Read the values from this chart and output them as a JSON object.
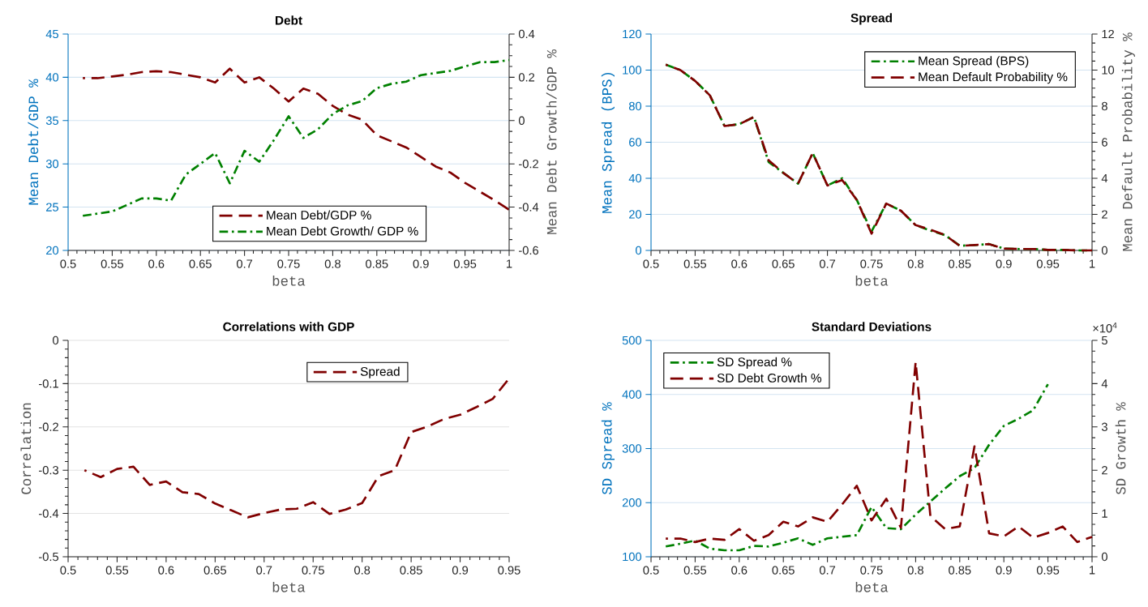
{
  "chart_data": [
    {
      "type": "line",
      "title": "Debt",
      "xlabel": "beta",
      "ylabel": "Mean Debt/GDP %",
      "y2label": "Mean Debt Growth/GDP %",
      "x": [
        0.5167,
        0.5333,
        0.55,
        0.5667,
        0.5833,
        0.6,
        0.6167,
        0.6333,
        0.65,
        0.6667,
        0.6833,
        0.7,
        0.7167,
        0.7333,
        0.75,
        0.7667,
        0.7833,
        0.8,
        0.8167,
        0.8333,
        0.85,
        0.8667,
        0.8833,
        0.9,
        0.9167,
        0.9333,
        0.95,
        0.9667,
        0.9833,
        1
      ],
      "xlim": [
        0.5,
        1
      ],
      "xticks": [
        0.5,
        0.55,
        0.6,
        0.65,
        0.7,
        0.75,
        0.8,
        0.85,
        0.9,
        0.95,
        1
      ],
      "ylim": [
        20,
        45
      ],
      "yticks": [
        20,
        25,
        30,
        35,
        40,
        45
      ],
      "y2lim": [
        -0.6,
        0.4
      ],
      "y2ticks": [
        -0.6,
        -0.4,
        -0.2,
        0,
        0.2,
        0.4
      ],
      "grid": "y",
      "legend": "bottom",
      "series": [
        {
          "name": "Mean Debt/GDP %",
          "color": "#800000",
          "line_style": "dashed",
          "values": [
            39.9,
            39.9,
            40.1,
            40.3,
            40.6,
            40.7,
            40.6,
            40.3,
            40,
            39.4,
            41,
            39.4,
            40,
            38.7,
            37.2,
            38.7,
            38.1,
            36.7,
            35.7,
            35.1,
            33.3,
            32.6,
            31.9,
            30.8,
            29.7,
            29,
            27.8,
            26.8,
            25.8,
            24.7
          ]
        },
        {
          "name": "Mean Debt Growth/ GDP %",
          "color": "#008000",
          "line_style": "dashdot",
          "axis": "y2",
          "values": [
            -0.44,
            -0.43,
            -0.42,
            -0.39,
            -0.36,
            -0.36,
            -0.37,
            -0.25,
            -0.2,
            -0.15,
            -0.29,
            -0.14,
            -0.19,
            -0.09,
            0.02,
            -0.08,
            -0.04,
            0.03,
            0.07,
            0.09,
            0.15,
            0.17,
            0.18,
            0.21,
            0.22,
            0.23,
            0.25,
            0.27,
            0.27,
            0.28
          ]
        }
      ]
    },
    {
      "type": "line",
      "title": "Spread",
      "xlabel": "beta",
      "ylabel": "Mean Spread (BPS)",
      "y2label": "Mean Default Probability %",
      "x": [
        0.5167,
        0.5333,
        0.55,
        0.5667,
        0.5833,
        0.6,
        0.6167,
        0.6333,
        0.65,
        0.6667,
        0.6833,
        0.7,
        0.7167,
        0.7333,
        0.75,
        0.7667,
        0.7833,
        0.8,
        0.8167,
        0.8333,
        0.85,
        0.8667,
        0.8833,
        0.9,
        0.9167,
        0.9333,
        0.95,
        0.9667,
        0.9833,
        1
      ],
      "xlim": [
        0.5,
        1
      ],
      "xticks": [
        0.5,
        0.55,
        0.6,
        0.65,
        0.7,
        0.75,
        0.8,
        0.85,
        0.9,
        0.95,
        1
      ],
      "ylim": [
        0,
        120
      ],
      "yticks": [
        0,
        20,
        40,
        60,
        80,
        100,
        120
      ],
      "y2lim": [
        0,
        12
      ],
      "y2ticks": [
        0,
        2,
        4,
        6,
        8,
        10,
        12
      ],
      "grid": "y",
      "legend": "top right",
      "series": [
        {
          "name": "Mean Spread (BPS)",
          "color": "#008000",
          "line_style": "dashdot",
          "values": [
            103,
            100,
            94,
            86,
            69,
            70,
            74,
            49,
            43,
            37,
            54,
            36,
            40,
            28,
            10.5,
            26,
            22,
            14,
            11,
            8.5,
            2.6,
            2.9,
            3.5,
            1,
            0.8,
            0.8,
            0.3,
            0.3,
            0,
            0
          ]
        },
        {
          "name": "Mean Default Probability %",
          "color": "#800000",
          "line_style": "dashed",
          "axis": "y2",
          "values": [
            10.3,
            10,
            9.4,
            8.6,
            6.9,
            7,
            7.4,
            5,
            4.3,
            3.7,
            5.4,
            3.6,
            3.9,
            2.8,
            0.93,
            2.6,
            2.2,
            1.4,
            1.15,
            0.85,
            0.25,
            0.3,
            0.35,
            0.1,
            0.08,
            0.08,
            0.03,
            0.03,
            0,
            0
          ]
        }
      ]
    },
    {
      "type": "line",
      "title": "Correlations with GDP",
      "xlabel": "beta",
      "ylabel": "Correlation",
      "x": [
        0.5167,
        0.5333,
        0.55,
        0.5667,
        0.5833,
        0.6,
        0.6167,
        0.6333,
        0.65,
        0.6667,
        0.6833,
        0.7,
        0.7167,
        0.7333,
        0.75,
        0.7667,
        0.7833,
        0.8,
        0.8167,
        0.8333,
        0.85,
        0.8667,
        0.8833,
        0.9,
        0.9167,
        0.9333,
        0.95
      ],
      "xlim": [
        0.5,
        0.95
      ],
      "xticks": [
        0.5,
        0.55,
        0.6,
        0.65,
        0.7,
        0.75,
        0.8,
        0.85,
        0.9,
        0.95
      ],
      "ylim": [
        -0.5,
        0
      ],
      "yticks": [
        -0.5,
        -0.4,
        -0.3,
        -0.2,
        -0.1,
        0
      ],
      "grid": "y",
      "legend": "top",
      "series": [
        {
          "name": "Spread",
          "color": "#800000",
          "line_style": "dashed",
          "values": [
            -0.3,
            -0.316,
            -0.297,
            -0.292,
            -0.334,
            -0.326,
            -0.351,
            -0.355,
            -0.377,
            -0.393,
            -0.409,
            -0.399,
            -0.391,
            -0.389,
            -0.374,
            -0.401,
            -0.391,
            -0.376,
            -0.314,
            -0.3,
            -0.212,
            -0.199,
            -0.182,
            -0.172,
            -0.154,
            -0.135,
            -0.088
          ]
        }
      ]
    },
    {
      "type": "line",
      "title": "Standard Deviations",
      "xlabel": "beta",
      "ylabel": "SD Spread %",
      "y2label": "SD Growth %",
      "annotations": [
        "×10$^{4}$"
      ],
      "x": [
        0.5167,
        0.5333,
        0.55,
        0.5667,
        0.5833,
        0.6,
        0.6167,
        0.6333,
        0.65,
        0.6667,
        0.6833,
        0.7,
        0.7167,
        0.7333,
        0.75,
        0.7667,
        0.7833,
        0.8,
        0.8167,
        0.8333,
        0.85,
        0.8667,
        0.8833,
        0.9,
        0.9167,
        0.9333,
        0.95,
        0.9667,
        0.9833,
        1
      ],
      "xlim": [
        0.5,
        1
      ],
      "xticks": [
        0.5,
        0.55,
        0.6,
        0.65,
        0.7,
        0.75,
        0.8,
        0.85,
        0.9,
        0.95,
        1
      ],
      "ylim": [
        100,
        500
      ],
      "yticks": [
        100,
        200,
        300,
        400,
        500
      ],
      "y2lim": [
        0,
        5
      ],
      "y2ticks": [
        0,
        1,
        2,
        3,
        4,
        5
      ],
      "grid": "y",
      "legend": "top left",
      "series": [
        {
          "name": "SD Spread %",
          "color": "#008000",
          "line_style": "dashdot",
          "values": [
            119,
            124,
            130,
            115,
            112,
            112,
            120,
            119,
            126,
            134,
            122,
            134,
            137,
            140,
            192,
            153,
            151,
            178,
            202,
            226,
            249,
            264,
            307,
            342,
            355,
            371,
            419,
            null,
            null,
            null
          ]
        },
        {
          "name": "SD Debt Growth %",
          "color": "#800000",
          "line_style": "dashed",
          "axis": "y2",
          "values": [
            0.42,
            0.42,
            0.34,
            0.42,
            0.39,
            0.64,
            0.37,
            0.5,
            0.81,
            0.7,
            0.91,
            0.81,
            1.21,
            1.64,
            0.84,
            1.34,
            0.67,
            4.5,
            0.94,
            0.64,
            0.7,
            2.55,
            0.54,
            0.47,
            0.7,
            0.44,
            0.55,
            0.7,
            0.34,
            0.46
          ]
        }
      ]
    }
  ]
}
